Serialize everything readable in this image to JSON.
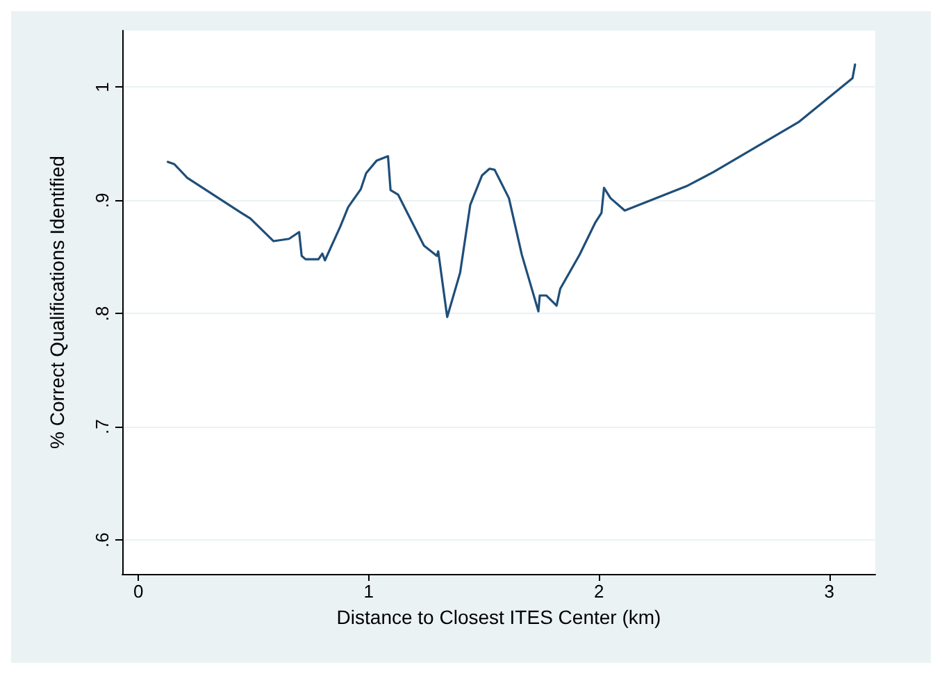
{
  "chart_data": {
    "type": "line",
    "xlabel": "Distance to Closest ITES Center (km)",
    "ylabel": "% Correct Qualifications Identified",
    "x": [
      0.128,
      0.156,
      0.212,
      0.447,
      0.486,
      0.587,
      0.654,
      0.698,
      0.709,
      0.726,
      0.782,
      0.799,
      0.81,
      0.877,
      0.911,
      0.966,
      0.989,
      1.034,
      1.084,
      1.095,
      1.128,
      1.24,
      1.296,
      1.302,
      1.341,
      1.397,
      1.441,
      1.492,
      1.525,
      1.547,
      1.609,
      1.665,
      1.737,
      1.743,
      1.771,
      1.816,
      1.832,
      1.916,
      1.983,
      2.011,
      2.022,
      2.05,
      2.112,
      2.385,
      2.497,
      2.866,
      3.101,
      3.112
    ],
    "series": [
      {
        "color": "#1f4e79",
        "values": [
          0.934,
          0.932,
          0.92,
          0.889,
          0.884,
          0.864,
          0.866,
          0.872,
          0.851,
          0.848,
          0.848,
          0.853,
          0.847,
          0.877,
          0.894,
          0.91,
          0.924,
          0.935,
          0.939,
          0.909,
          0.905,
          0.86,
          0.851,
          0.855,
          0.797,
          0.836,
          0.896,
          0.922,
          0.928,
          0.927,
          0.902,
          0.852,
          0.802,
          0.816,
          0.816,
          0.807,
          0.822,
          0.852,
          0.88,
          0.889,
          0.911,
          0.902,
          0.891,
          0.913,
          0.925,
          0.969,
          1.008,
          1.02
        ]
      }
    ],
    "xlim": [
      -0.07,
      3.2
    ],
    "xticks": [
      0,
      1,
      2,
      3
    ],
    "ylim": [
      0.57,
      1.05
    ],
    "yticks": [
      {
        "value": 0.6,
        "label": ".6"
      },
      {
        "value": 0.7,
        "label": ".7"
      },
      {
        "value": 0.8,
        "label": ".8"
      },
      {
        "value": 0.9,
        "label": ".9"
      },
      {
        "value": 1,
        "label": "1"
      }
    ],
    "grid": "y",
    "marker": "none",
    "line_style": "solid"
  }
}
